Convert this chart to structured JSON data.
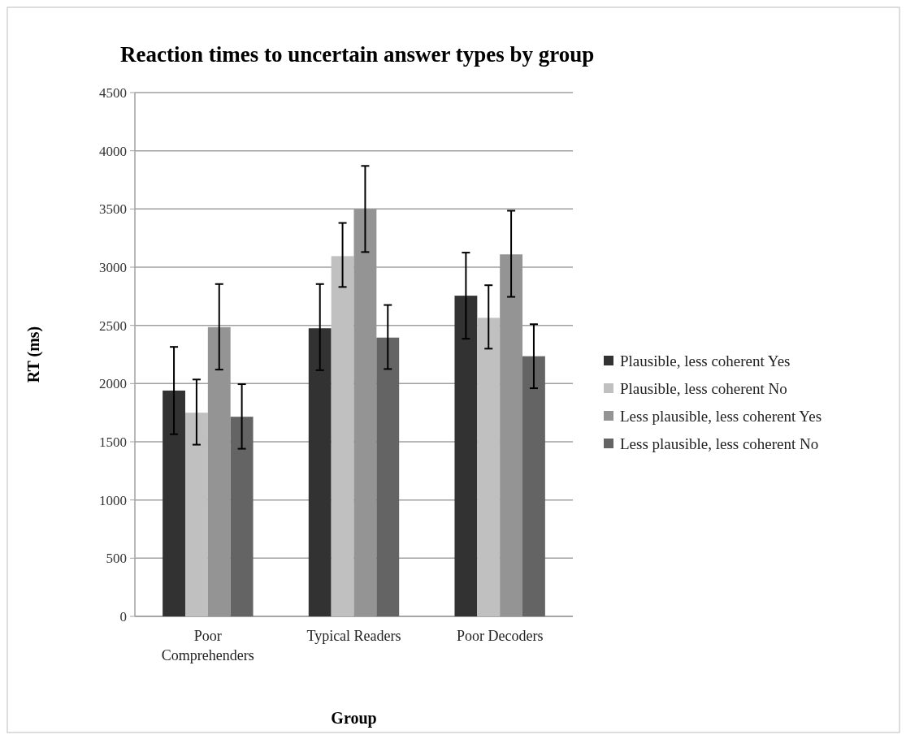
{
  "chart_data": {
    "type": "bar",
    "title": "Reaction times to uncertain answer types by group",
    "xlabel": "Group",
    "ylabel": "RT (ms)",
    "categories": [
      "Poor Comprehenders",
      "Typical Readers",
      "Poor Decoders"
    ],
    "series": [
      {
        "name": "Plausible, less coherent Yes",
        "color": "#323232",
        "values": [
          1940,
          2475,
          2755
        ],
        "errors": [
          [
            1565,
            2315
          ],
          [
            2115,
            2855
          ],
          [
            2385,
            3125
          ]
        ]
      },
      {
        "name": "Plausible, less coherent No",
        "color": "#c0c0c0",
        "values": [
          1750,
          3095,
          2565
        ],
        "errors": [
          [
            1475,
            2035
          ],
          [
            2830,
            3380
          ],
          [
            2300,
            2845
          ]
        ]
      },
      {
        "name": "Less plausible, less coherent Yes",
        "color": "#949494",
        "values": [
          2485,
          3500,
          3110
        ],
        "errors": [
          [
            2120,
            2855
          ],
          [
            3130,
            3870
          ],
          [
            2745,
            3485
          ]
        ]
      },
      {
        "name": "Less plausible, less coherent No",
        "color": "#646464",
        "values": [
          1715,
          2395,
          2235
        ],
        "errors": [
          [
            1440,
            1995
          ],
          [
            2125,
            2675
          ],
          [
            1960,
            2510
          ]
        ]
      }
    ],
    "ylim": [
      0,
      4500
    ],
    "yticks": [
      0,
      500,
      1000,
      1500,
      2000,
      2500,
      3000,
      3500,
      4000,
      4500
    ],
    "grid": "y",
    "legend": "right"
  }
}
